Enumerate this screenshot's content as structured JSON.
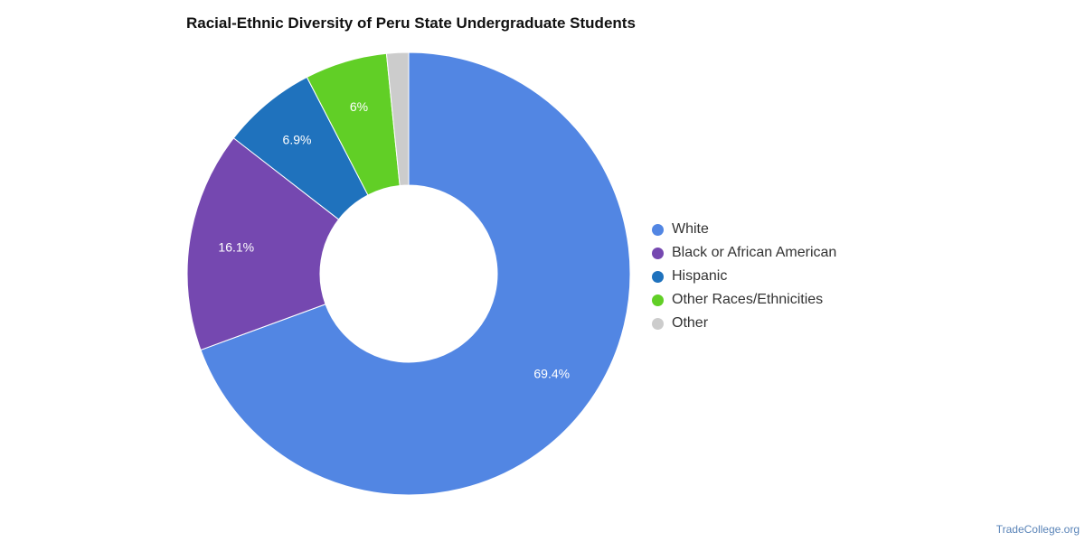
{
  "chart_data": {
    "type": "pie",
    "title": "Racial-Ethnic Diversity of Peru State Undergraduate Students",
    "donut": true,
    "legend_position": "right",
    "slices": [
      {
        "name": "White",
        "value": 69.4,
        "label": "69.4%",
        "color": "#5286e3"
      },
      {
        "name": "Black or African American",
        "value": 16.1,
        "label": "16.1%",
        "color": "#7548b0"
      },
      {
        "name": "Hispanic",
        "value": 6.9,
        "label": "6.9%",
        "color": "#1f72bd"
      },
      {
        "name": "Other Races/Ethnicities",
        "value": 6.0,
        "label": "6%",
        "color": "#61cf26"
      },
      {
        "name": "Other",
        "value": 1.6,
        "label": "",
        "color": "#cccccc"
      }
    ]
  },
  "footer": {
    "source": "TradeCollege.org"
  }
}
